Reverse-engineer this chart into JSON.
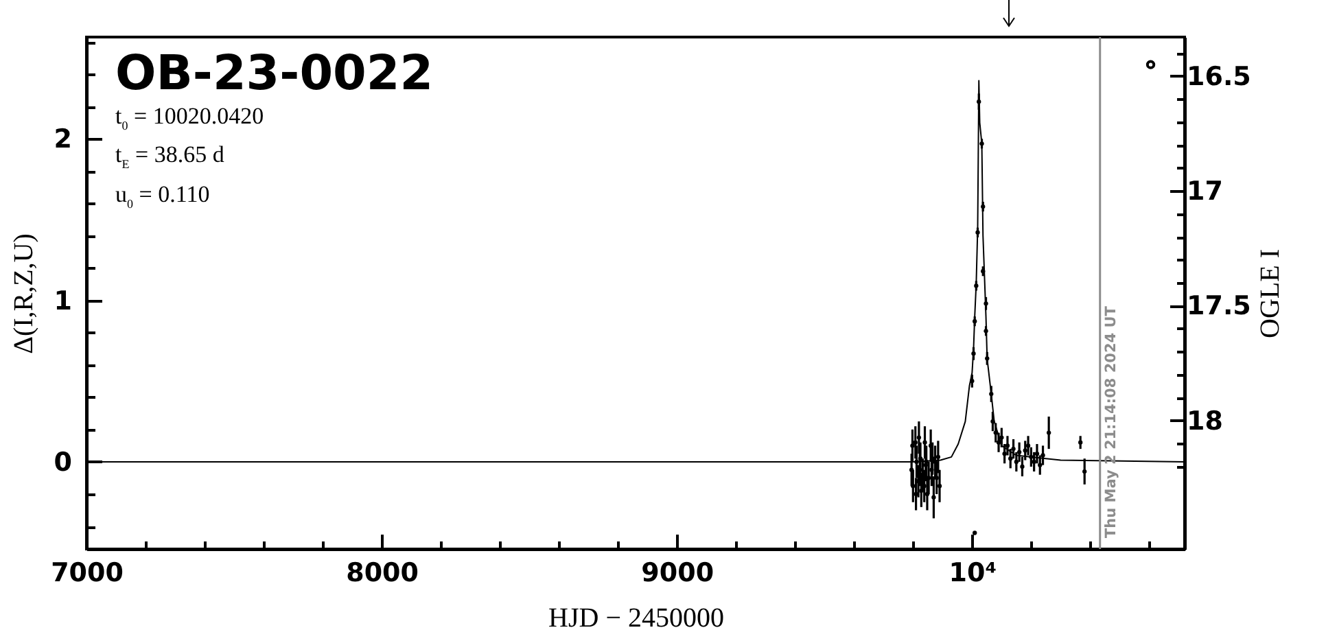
{
  "chart_data": {
    "type": "scatter",
    "title": "OB-23-0022",
    "annotations": [
      "t$_{0}$ = 10020.0420",
      "t$_{E}$ = 38.65 d",
      "u$_{0}$ = 0.110",
      {
        "text": "Thu May  2 21:14:08 2024 UT",
        "x": 10433.4
      }
    ],
    "xlabel": "HJD − 2450000",
    "ylabel": "Δ(I,R,Z,U)",
    "y2label": "OGLE I",
    "xlim": [
      7000,
      10720
    ],
    "ylim": [
      -0.54,
      2.63
    ],
    "y2lim": [
      18.56,
      16.33
    ],
    "xticks": [
      7000,
      {
        "value": 7200,
        "label": null
      },
      {
        "value": 7400,
        "label": null
      },
      {
        "value": 7600,
        "label": null
      },
      {
        "value": 7800,
        "label": null
      },
      8000,
      {
        "value": 8200,
        "label": null
      },
      {
        "value": 8400,
        "label": null
      },
      {
        "value": 8600,
        "label": null
      },
      {
        "value": 8800,
        "label": null
      },
      9000,
      {
        "value": 9200,
        "label": null
      },
      {
        "value": 9400,
        "label": null
      },
      {
        "value": 9600,
        "label": null
      },
      {
        "value": 9800,
        "label": null
      },
      {
        "value": 10000,
        "label": "10⁴"
      },
      {
        "value": 10200,
        "label": null
      },
      {
        "value": 10400,
        "label": null
      },
      {
        "value": 10600,
        "label": null
      }
    ],
    "yticks": [
      {
        "value": -0.4,
        "label": null
      },
      {
        "value": -0.2,
        "label": null
      },
      0,
      {
        "value": 0.2,
        "label": null
      },
      {
        "value": 0.4,
        "label": null
      },
      {
        "value": 0.6,
        "label": null
      },
      {
        "value": 0.8,
        "label": null
      },
      1,
      {
        "value": 1.2,
        "label": null
      },
      {
        "value": 1.4,
        "label": null
      },
      {
        "value": 1.6,
        "label": null
      },
      {
        "value": 1.8,
        "label": null
      },
      2,
      {
        "value": 2.2,
        "label": null
      },
      {
        "value": 2.4,
        "label": null
      },
      {
        "value": 2.6,
        "label": null
      }
    ],
    "y2ticks": [
      {
        "value": 16.4,
        "label": null
      },
      16.5,
      {
        "value": 16.6,
        "label": null
      },
      {
        "value": 16.7,
        "label": null
      },
      {
        "value": 16.8,
        "label": null
      },
      {
        "value": 16.9,
        "label": null
      },
      17,
      {
        "value": 17.1,
        "label": null
      },
      {
        "value": 17.2,
        "label": null
      },
      {
        "value": 17.3,
        "label": null
      },
      {
        "value": 17.4,
        "label": null
      },
      17.5,
      {
        "value": 17.6,
        "label": null
      },
      {
        "value": 17.7,
        "label": null
      },
      {
        "value": 17.8,
        "label": null
      },
      {
        "value": 17.9,
        "label": null
      },
      18,
      {
        "value": 18.1,
        "label": null
      },
      {
        "value": 18.2,
        "label": null
      }
    ],
    "series": [
      {
        "type": "line",
        "color": "#000000",
        "x": [
          7000,
          9800,
          9893,
          9930,
          9953,
          9977,
          9991,
          10000,
          10005,
          10009,
          10014,
          10019,
          10021,
          10023,
          10026,
          10033,
          10037,
          10047,
          10051,
          10065,
          10075,
          10100,
          10150,
          10300,
          10720
        ],
        "values": [
          0,
          0,
          0.01,
          0.03,
          0.11,
          0.25,
          0.47,
          0.55,
          0.7,
          0.9,
          1.1,
          1.45,
          1.9,
          2.36,
          2.1,
          1.97,
          1.4,
          0.9,
          0.64,
          0.42,
          0.25,
          0.1,
          0.04,
          0.01,
          0
        ]
      },
      {
        "color": "#000000",
        "x": [
          9795,
          9798,
          9800,
          9808,
          9810,
          9812,
          9818,
          9820,
          9823,
          9825,
          9828,
          9833,
          9838,
          9840,
          9843,
          9845,
          9848,
          9853,
          9860,
          9863,
          9866,
          9870,
          9875,
          9880,
          9885,
          9890,
          10000,
          10005,
          10009,
          10009,
          10014,
          10019,
          10023,
          10033,
          10037,
          10037,
          10047,
          10047,
          10051,
          10065,
          10070,
          10080,
          10090,
          10100,
          10110,
          10120,
          10130,
          10140,
          10150,
          10160,
          10170,
          10180,
          10190,
          10200,
          10210,
          10220,
          10230,
          10240,
          10260,
          10367,
          10381
        ],
        "values": [
          -0.05,
          0.1,
          -0.15,
          0.12,
          -0.2,
          0,
          -0.12,
          0.15,
          -0.05,
          0.02,
          -0.18,
          -0.08,
          -0.15,
          0.12,
          -0.02,
          0,
          -0.2,
          -0.1,
          0.1,
          -0.05,
          0.02,
          -0.22,
          0,
          -0.1,
          0.03,
          -0.15,
          0.5,
          0.67,
          0.87,
          -0.44,
          1.09,
          1.42,
          2.23,
          1.97,
          1.58,
          1.18,
          0.98,
          0.81,
          0.64,
          0.42,
          0.25,
          0.18,
          0.12,
          0.15,
          0.05,
          0.1,
          0.02,
          0.08,
          0,
          0.06,
          -0.03,
          0.07,
          0.1,
          0.03,
          0,
          0.05,
          -0.02,
          0.04,
          0.18,
          0.12,
          -0.06
        ],
        "errors": [
          0.1,
          0.1,
          0.1,
          0.1,
          0.1,
          0.1,
          0.1,
          0.1,
          0.1,
          0.1,
          0.1,
          0.1,
          0.1,
          0.1,
          0.1,
          0.1,
          0.1,
          0.1,
          0.1,
          0.1,
          0.1,
          0.13,
          0.1,
          0.1,
          0.1,
          0.1,
          0.04,
          0.04,
          0.03,
          0.01,
          0.03,
          0.03,
          0.05,
          0.03,
          0.03,
          0.03,
          0.04,
          0.03,
          0.04,
          0.05,
          0.06,
          0.06,
          0.06,
          0.06,
          0.06,
          0.06,
          0.06,
          0.06,
          0.06,
          0.06,
          0.06,
          0.06,
          0.06,
          0.06,
          0.06,
          0.06,
          0.06,
          0.06,
          0.1,
          0.04,
          0.08
        ]
      },
      {
        "color": "#000000",
        "axis": "y2",
        "x": [
          10605
        ],
        "values": [
          16.45
        ]
      }
    ],
    "ref_lines": [
      {
        "axis": "x",
        "value": 10433.4,
        "color": "#8c8c8c"
      }
    ]
  }
}
